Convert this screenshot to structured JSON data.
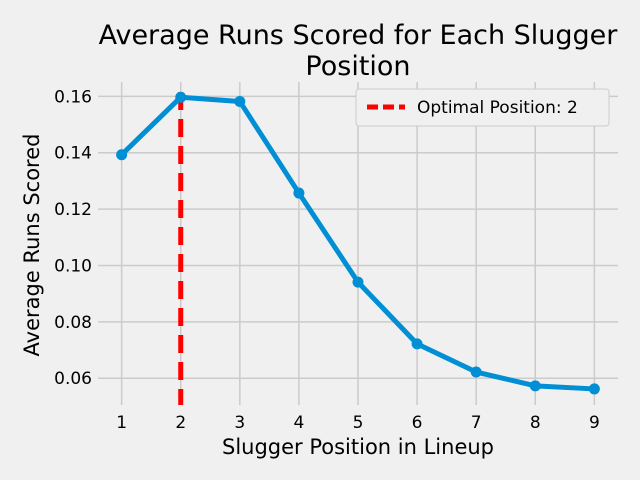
{
  "chart_data": {
    "type": "line",
    "title_lines": [
      "Average Runs Scored for Each Slugger",
      "Position"
    ],
    "xlabel": "Slugger Position in Lineup",
    "ylabel": "Average Runs Scored",
    "x": [
      1,
      2,
      3,
      4,
      5,
      6,
      7,
      8,
      9
    ],
    "series": [
      {
        "values": [
          0.1393,
          0.1597,
          0.1582,
          0.1257,
          0.0941,
          0.0722,
          0.0622,
          0.0573,
          0.0562
        ]
      }
    ],
    "xlim": [
      0.6,
      9.4
    ],
    "ylim": [
      0.0505,
      0.1651
    ],
    "xticks": [
      1,
      2,
      3,
      4,
      5,
      6,
      7,
      8,
      9
    ],
    "yticks": [
      0.06,
      0.08,
      0.1,
      0.12,
      0.14,
      0.16
    ],
    "ytick_labels": [
      "0.06",
      "0.08",
      "0.10",
      "0.12",
      "0.14",
      "0.16"
    ],
    "optimal_line": {
      "x": 2,
      "label": "Optimal Position: 2",
      "color": "#ff0000"
    },
    "line_color": "#008fd5",
    "grid": true,
    "legend_position": "top-right"
  }
}
